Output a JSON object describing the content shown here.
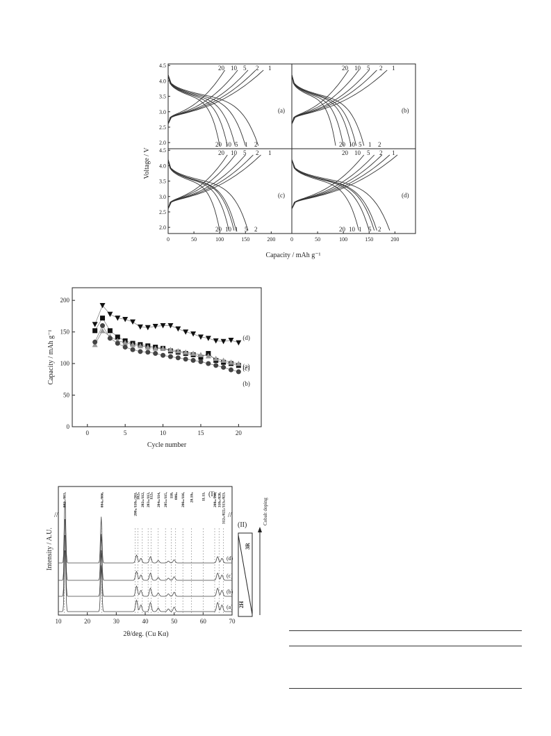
{
  "figure1": {
    "ylabel": "Voltage / V",
    "xlabel": "Capacity / mAh g⁻¹",
    "yticks": [
      "2.0",
      "2.5",
      "3.0",
      "3.5",
      "4.0",
      "4.5"
    ],
    "xticks": [
      "0",
      "50",
      "100",
      "150",
      "200"
    ],
    "panels": [
      {
        "label": "(a)",
        "top_labels": [
          "20",
          "10",
          "5",
          "2",
          "1"
        ],
        "bottom_labels": [
          "20",
          "10",
          "5",
          "1",
          "2"
        ],
        "charge_end": [
          110,
          135,
          155,
          170,
          185
        ],
        "discharge_end": [
          100,
          115,
          130,
          150,
          175
        ]
      },
      {
        "label": "(b)",
        "top_labels": [
          "20",
          "10",
          "5",
          "2",
          "1"
        ],
        "bottom_labels": [
          "20",
          "10",
          "5",
          "1",
          "2"
        ],
        "charge_end": [
          110,
          130,
          150,
          165,
          185
        ],
        "discharge_end": [
          85,
          100,
          115,
          125,
          140
        ]
      },
      {
        "label": "(c)",
        "top_labels": [
          "20",
          "10",
          "5",
          "2",
          "1"
        ],
        "bottom_labels": [
          "20",
          "10",
          "1",
          "5",
          "2"
        ],
        "charge_end": [
          115,
          130,
          150,
          165,
          180
        ],
        "discharge_end": [
          100,
          118,
          128,
          132,
          155
        ]
      },
      {
        "label": "(d)",
        "top_labels": [
          "20",
          "10",
          "5",
          "2",
          "1"
        ],
        "bottom_labels": [
          "20",
          "10",
          "1",
          "5",
          "2"
        ],
        "charge_end": [
          140,
          160,
          175,
          190,
          205
        ],
        "discharge_end": [
          130,
          150,
          160,
          165,
          190
        ]
      }
    ]
  },
  "chart_data": {
    "type": "scatter",
    "xlabel": "Cycle number",
    "ylabel": "Capacity / mAh g⁻¹",
    "xlim": [
      -2,
      23
    ],
    "ylim": [
      0,
      220
    ],
    "xticks": [
      "0",
      "5",
      "10",
      "15",
      "20"
    ],
    "yticks": [
      "0",
      "50",
      "100",
      "150",
      "200"
    ],
    "series": [
      {
        "name": "(d)",
        "marker": "triangle-down",
        "color": "#111111",
        "x": [
          1,
          2,
          3,
          4,
          5,
          6,
          7,
          8,
          9,
          10,
          11,
          12,
          13,
          14,
          15,
          16,
          17,
          18,
          19,
          20
        ],
        "y": [
          162,
          192,
          178,
          172,
          170,
          166,
          158,
          157,
          159,
          160,
          160,
          155,
          150,
          147,
          142,
          140,
          136,
          135,
          137,
          133
        ]
      },
      {
        "name": "(a)",
        "marker": "square",
        "color": "#111111",
        "x": [
          1,
          2,
          3,
          4,
          5,
          6,
          7,
          8,
          9,
          10,
          11,
          12,
          13,
          14,
          15,
          16,
          17,
          18,
          19,
          20
        ],
        "y": [
          152,
          172,
          152,
          142,
          136,
          132,
          130,
          128,
          126,
          124,
          120,
          118,
          116,
          114,
          110,
          116,
          105,
          102,
          100,
          97
        ]
      },
      {
        "name": "(c)",
        "marker": "triangle-up",
        "color": "#999999",
        "x": [
          1,
          2,
          3,
          4,
          5,
          6,
          7,
          8,
          9,
          10,
          11,
          12,
          13,
          14,
          15,
          16,
          17,
          18,
          19,
          20
        ],
        "y": [
          130,
          152,
          143,
          136,
          133,
          130,
          128,
          126,
          124,
          124,
          122,
          120,
          118,
          116,
          114,
          112,
          108,
          105,
          102,
          100
        ]
      },
      {
        "name": "(b)",
        "marker": "circle",
        "color": "#444444",
        "x": [
          1,
          2,
          3,
          4,
          5,
          6,
          7,
          8,
          9,
          10,
          11,
          12,
          13,
          14,
          15,
          16,
          17,
          18,
          19,
          20
        ],
        "y": [
          134,
          160,
          140,
          132,
          126,
          122,
          119,
          118,
          116,
          113,
          111,
          109,
          107,
          105,
          103,
          100,
          97,
          94,
          90,
          87
        ]
      }
    ]
  },
  "figure3": {
    "xlabel": "2θ/deg. (Cu Kα)",
    "ylabel": "Intensity / A.U.",
    "xticks": [
      "10",
      "20",
      "30",
      "40",
      "50",
      "60",
      "70"
    ],
    "panel_label": "(I)",
    "panel2_label": "(II)",
    "curve_labels": [
      "(d)",
      "(c)",
      "(b)",
      "(a)"
    ],
    "peak_labels": [
      "002ₕ/003ᵣ",
      "004ₕ/006ᵣ",
      "200ₕ/110ₕ/201ᵣ",
      "102ₕ",
      "202ₕ/112ᵣ",
      "203ₕ/113ᵣ",
      "112ₕ",
      "204ₕ/114ᵣ",
      "205ₕ/115ᵣ",
      "118ᵣ",
      "006ₕ",
      "206ₕ/116ᵣ",
      "20.10ₕ",
      "11.11ᵣ",
      "208ₕ/118ᵣ",
      "310ₕ/020ᵣ",
      "312ₕ/022ᵣ/313ₕ/023ᵣ"
    ],
    "box_top": "3R",
    "box_bottom": "2H",
    "arrow_label": "Cobalt doping"
  }
}
